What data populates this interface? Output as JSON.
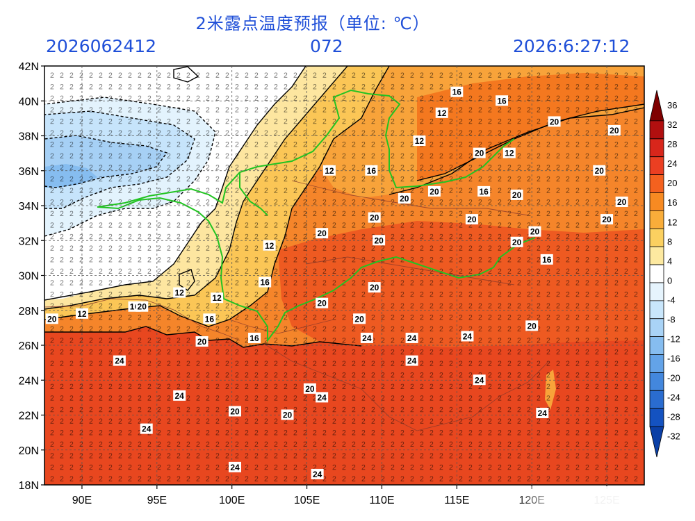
{
  "header": {
    "title": "2米露点温度预报（单位: ℃）",
    "init_time": "2026062412",
    "lead_hours": "072",
    "valid_time": "2026:6:27:12"
  },
  "axes": {
    "lon_ticks": [
      "90E",
      "95E",
      "100E",
      "105E",
      "110E",
      "115E",
      "120E",
      "125E"
    ],
    "lat_ticks": [
      "42N",
      "40N",
      "38N",
      "36N",
      "34N",
      "32N",
      "30N",
      "28N",
      "26N",
      "24N",
      "22N",
      "20N",
      "18N"
    ],
    "lon_range": [
      87.5,
      127.5
    ],
    "lat_range": [
      18,
      42
    ]
  },
  "colorbar": {
    "levels": [
      "36",
      "32",
      "28",
      "24",
      "20",
      "16",
      "12",
      "8",
      "4",
      "0",
      "-4",
      "-8",
      "-12",
      "-16",
      "-20",
      "-24",
      "-28",
      "-32"
    ],
    "colors": [
      "#7f0000",
      "#b10f0f",
      "#d8261b",
      "#eb3f22",
      "#f4611f",
      "#f78a22",
      "#f9ad3a",
      "#fbd060",
      "#fde9a0",
      "#ffffff",
      "#e6f4fd",
      "#c9e6fb",
      "#a9d3f6",
      "#86bdf0",
      "#63a3e8",
      "#4387dd",
      "#2a6cd0",
      "#1452c0",
      "#0a3fa6"
    ]
  },
  "map_labels": [
    {
      "text": "16",
      "lon": 115.0,
      "lat": 40.5
    },
    {
      "text": "16",
      "lon": 118.0,
      "lat": 40.0
    },
    {
      "text": "12",
      "lon": 114.0,
      "lat": 39.3
    },
    {
      "text": "12",
      "lon": 112.5,
      "lat": 37.7
    },
    {
      "text": "20",
      "lon": 121.5,
      "lat": 38.8
    },
    {
      "text": "20",
      "lon": 125.5,
      "lat": 38.3
    },
    {
      "text": "20",
      "lon": 116.5,
      "lat": 37.0
    },
    {
      "text": "12",
      "lon": 118.5,
      "lat": 37.0
    },
    {
      "text": "20",
      "lon": 124.5,
      "lat": 36.0
    },
    {
      "text": "12",
      "lon": 106.5,
      "lat": 36.0
    },
    {
      "text": "16",
      "lon": 109.3,
      "lat": 36.0
    },
    {
      "text": "20",
      "lon": 113.5,
      "lat": 34.8
    },
    {
      "text": "20",
      "lon": 111.5,
      "lat": 34.4
    },
    {
      "text": "16",
      "lon": 116.8,
      "lat": 34.8
    },
    {
      "text": "20",
      "lon": 119.0,
      "lat": 34.6
    },
    {
      "text": "20",
      "lon": 126.0,
      "lat": 34.2
    },
    {
      "text": "20",
      "lon": 109.5,
      "lat": 33.3
    },
    {
      "text": "20",
      "lon": 116.0,
      "lat": 33.2
    },
    {
      "text": "20",
      "lon": 125.0,
      "lat": 33.2
    },
    {
      "text": "20",
      "lon": 106.0,
      "lat": 32.4
    },
    {
      "text": "20",
      "lon": 109.8,
      "lat": 32.0
    },
    {
      "text": "20",
      "lon": 120.2,
      "lat": 32.5
    },
    {
      "text": "20",
      "lon": 119.0,
      "lat": 31.9
    },
    {
      "text": "12",
      "lon": 102.5,
      "lat": 31.7
    },
    {
      "text": "16",
      "lon": 121.0,
      "lat": 30.9
    },
    {
      "text": "16",
      "lon": 102.2,
      "lat": 29.6
    },
    {
      "text": "20",
      "lon": 109.5,
      "lat": 29.3
    },
    {
      "text": "12",
      "lon": 96.5,
      "lat": 29.0
    },
    {
      "text": "12",
      "lon": 99.0,
      "lat": 28.7
    },
    {
      "text": "20",
      "lon": 106.0,
      "lat": 28.4
    },
    {
      "text": "16",
      "lon": 93.5,
      "lat": 28.2
    },
    {
      "text": "20",
      "lon": 94.0,
      "lat": 28.2
    },
    {
      "text": "20",
      "lon": 88.0,
      "lat": 27.5
    },
    {
      "text": "12",
      "lon": 90.0,
      "lat": 27.8
    },
    {
      "text": "16",
      "lon": 98.5,
      "lat": 27.5
    },
    {
      "text": "20",
      "lon": 108.5,
      "lat": 27.5
    },
    {
      "text": "20",
      "lon": 120.0,
      "lat": 27.1
    },
    {
      "text": "16",
      "lon": 101.5,
      "lat": 26.4
    },
    {
      "text": "20",
      "lon": 98.0,
      "lat": 26.2
    },
    {
      "text": "24",
      "lon": 109.0,
      "lat": 26.4
    },
    {
      "text": "24",
      "lon": 112.0,
      "lat": 26.4
    },
    {
      "text": "24",
      "lon": 115.7,
      "lat": 26.5
    },
    {
      "text": "24",
      "lon": 92.5,
      "lat": 25.1
    },
    {
      "text": "24",
      "lon": 112.0,
      "lat": 25.1
    },
    {
      "text": "24",
      "lon": 116.5,
      "lat": 24.0
    },
    {
      "text": "20",
      "lon": 105.2,
      "lat": 23.5
    },
    {
      "text": "24",
      "lon": 96.5,
      "lat": 23.1
    },
    {
      "text": "24",
      "lon": 106.0,
      "lat": 23.0
    },
    {
      "text": "20",
      "lon": 100.2,
      "lat": 22.2
    },
    {
      "text": "20",
      "lon": 103.7,
      "lat": 22.0
    },
    {
      "text": "24",
      "lon": 120.7,
      "lat": 22.1
    },
    {
      "text": "24",
      "lon": 94.3,
      "lat": 21.2
    },
    {
      "text": "24",
      "lon": 100.2,
      "lat": 19.0
    },
    {
      "text": "24",
      "lon": 105.7,
      "lat": 18.6
    }
  ]
}
